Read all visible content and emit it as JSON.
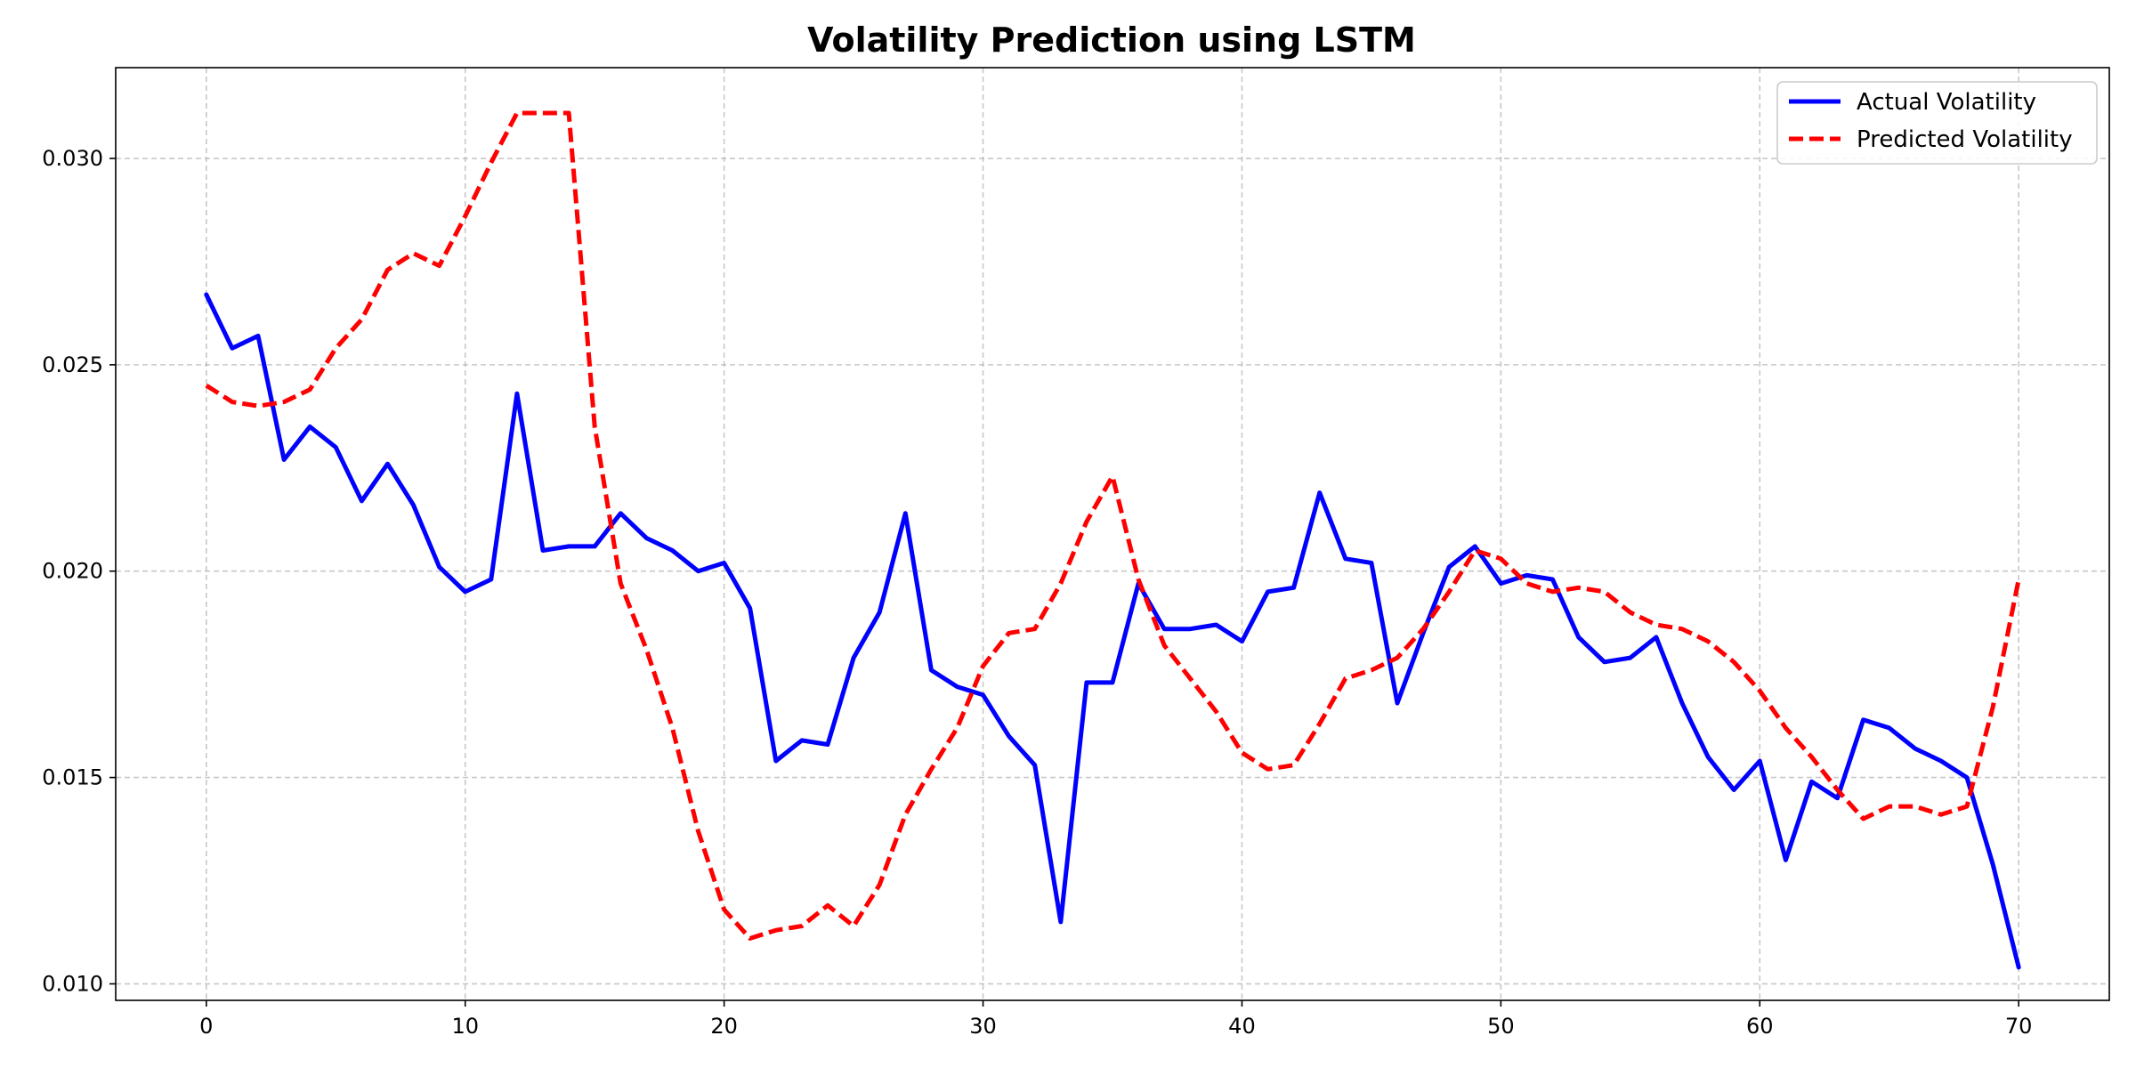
{
  "chart_data": {
    "type": "line",
    "title": "Volatility Prediction using LSTM",
    "xlabel": "",
    "ylabel": "",
    "xlim": [
      -3.5,
      73.5
    ],
    "ylim": [
      0.0096,
      0.0322
    ],
    "xticks": [
      0,
      10,
      20,
      30,
      40,
      50,
      60,
      70
    ],
    "yticks": [
      0.01,
      0.015,
      0.02,
      0.025,
      0.03
    ],
    "ytick_labels": [
      "0.010",
      "0.015",
      "0.020",
      "0.025",
      "0.030"
    ],
    "grid": true,
    "legend_position": "top-right",
    "x": [
      0,
      1,
      2,
      3,
      4,
      5,
      6,
      7,
      8,
      9,
      10,
      11,
      12,
      13,
      14,
      15,
      16,
      17,
      18,
      19,
      20,
      21,
      22,
      23,
      24,
      25,
      26,
      27,
      28,
      29,
      30,
      31,
      32,
      33,
      34,
      35,
      36,
      37,
      38,
      39,
      40,
      41,
      42,
      43,
      44,
      45,
      46,
      47,
      48,
      49,
      50,
      51,
      52,
      53,
      54,
      55,
      56,
      57,
      58,
      59,
      60,
      61,
      62,
      63,
      64,
      65,
      66,
      67,
      68,
      69,
      70
    ],
    "series": [
      {
        "name": "Actual Volatility",
        "color": "#0000ff",
        "style": "solid",
        "values": [
          0.0267,
          0.0254,
          0.0257,
          0.0227,
          0.0235,
          0.023,
          0.0217,
          0.0226,
          0.0216,
          0.0201,
          0.0195,
          0.0198,
          0.0243,
          0.0205,
          0.0206,
          0.0206,
          0.0214,
          0.0208,
          0.0205,
          0.02,
          0.0202,
          0.0191,
          0.0154,
          0.0159,
          0.0158,
          0.0179,
          0.019,
          0.0214,
          0.0176,
          0.0172,
          0.017,
          0.016,
          0.0153,
          0.0115,
          0.0173,
          0.0173,
          0.0197,
          0.0186,
          0.0186,
          0.0187,
          0.0183,
          0.0195,
          0.0196,
          0.0219,
          0.0203,
          0.0202,
          0.0168,
          0.0185,
          0.0201,
          0.0206,
          0.0197,
          0.0199,
          0.0198,
          0.0184,
          0.0178,
          0.0179,
          0.0184,
          0.0168,
          0.0155,
          0.0147,
          0.0154,
          0.013,
          0.0149,
          0.0145,
          0.0164,
          0.0162,
          0.0157,
          0.0154,
          0.015,
          0.0129,
          0.0104
        ]
      },
      {
        "name": "Predicted Volatility",
        "color": "#ff0000",
        "style": "dashed",
        "values": [
          0.0245,
          0.0241,
          0.024,
          0.0241,
          0.0244,
          0.0254,
          0.0261,
          0.0273,
          0.0277,
          0.0274,
          0.0286,
          0.0299,
          0.0311,
          0.0311,
          0.0311,
          0.0235,
          0.0197,
          0.0181,
          0.0162,
          0.0137,
          0.0118,
          0.0111,
          0.0113,
          0.0114,
          0.0119,
          0.0114,
          0.0124,
          0.0141,
          0.0152,
          0.0162,
          0.0177,
          0.0185,
          0.0186,
          0.0197,
          0.0212,
          0.0223,
          0.0198,
          0.0182,
          0.0174,
          0.0166,
          0.0156,
          0.0152,
          0.0153,
          0.0163,
          0.0174,
          0.0176,
          0.0179,
          0.0186,
          0.0195,
          0.0205,
          0.0203,
          0.0197,
          0.0195,
          0.0196,
          0.0195,
          0.019,
          0.0187,
          0.0186,
          0.0183,
          0.0178,
          0.0171,
          0.0162,
          0.0155,
          0.0147,
          0.014,
          0.0143,
          0.0143,
          0.0141,
          0.0143,
          0.0167,
          0.0198
        ]
      }
    ]
  }
}
